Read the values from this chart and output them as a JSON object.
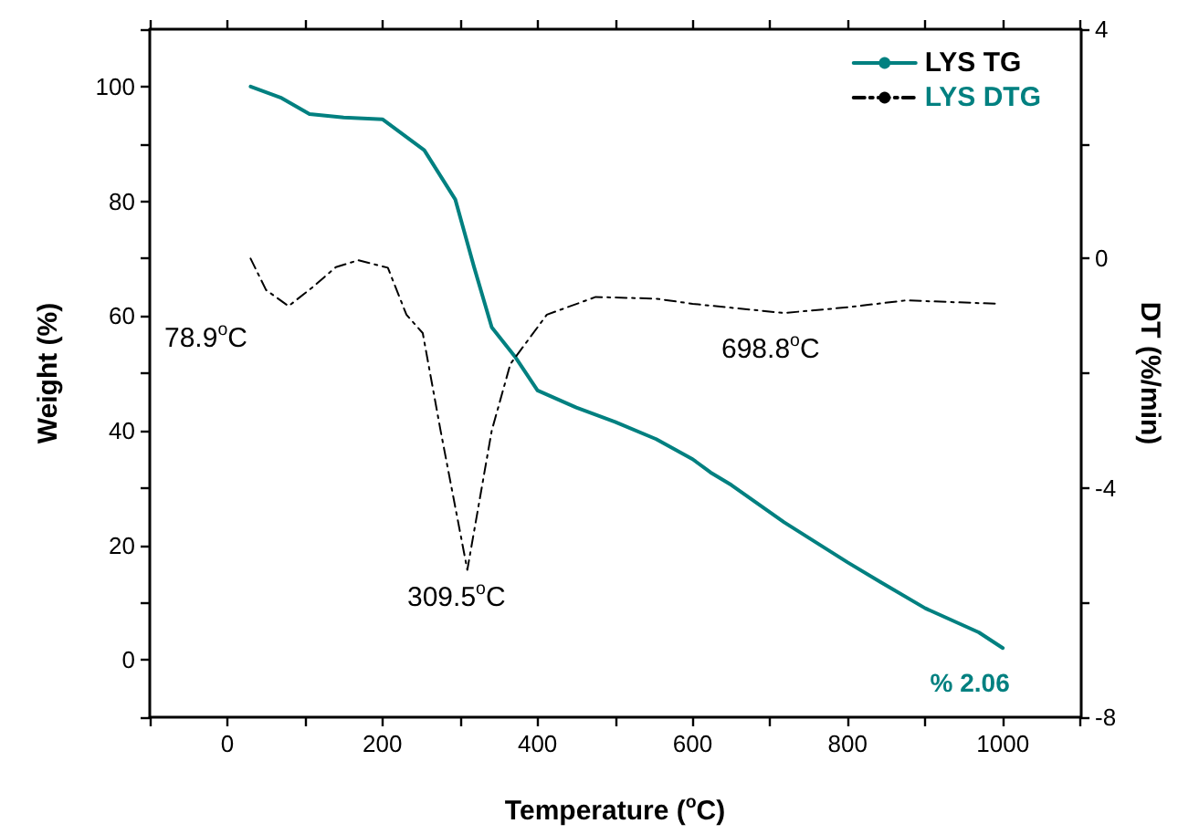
{
  "chart_data": {
    "type": "line",
    "xlabel": "Temperature ($^{o}$C)",
    "ylabel": "Weight (%)",
    "y2label": "DT (%/min)",
    "xlim": [
      -100,
      1100
    ],
    "xticks": [
      {
        "value": -100,
        "label": null
      },
      0,
      {
        "value": 100,
        "label": null
      },
      200,
      {
        "value": 300,
        "label": null
      },
      400,
      {
        "value": 500,
        "label": null
      },
      600,
      {
        "value": 700,
        "label": null
      },
      800,
      {
        "value": 900,
        "label": null
      },
      1000,
      {
        "value": 1100,
        "label": null
      }
    ],
    "ylim": [
      -10,
      110
    ],
    "yticks": [
      {
        "value": -10,
        "label": null
      },
      0,
      {
        "value": 10,
        "label": null
      },
      20,
      {
        "value": 30,
        "label": null
      },
      40,
      {
        "value": 50,
        "label": null
      },
      60,
      {
        "value": 70,
        "label": null
      },
      80,
      {
        "value": 90,
        "label": null
      },
      100,
      {
        "value": 110,
        "label": null
      }
    ],
    "y2lim": [
      -8,
      4
    ],
    "y2ticks": [
      -8,
      {
        "value": -6,
        "label": null
      },
      -4,
      {
        "value": -2,
        "label": null
      },
      0,
      {
        "value": 2,
        "label": null
      },
      4
    ],
    "grid": false,
    "legend": "top right",
    "marker": "none",
    "annotations": [
      "78.9$^{o}$C",
      "309.5$^{o}$C",
      "698.8$^{o}$C"
    ],
    "series": [
      {
        "name": "LYS TG",
        "color": "#008080",
        "line_style": "solid",
        "x": [
          30,
          70,
          106,
          150,
          200,
          254,
          294,
          318,
          341,
          372,
          400,
          450,
          500,
          553,
          600,
          623,
          650,
          718,
          800,
          842,
          900,
          969,
          1000
        ],
        "values": [
          100,
          98,
          95.2,
          94.6,
          94.3,
          88.9,
          80.3,
          68.6,
          58,
          52.7,
          47,
          44,
          41.5,
          38.5,
          35,
          32.7,
          30.5,
          24,
          17,
          13.6,
          9,
          4.8,
          2.06
        ],
        "value_labels": [
          null,
          null,
          null,
          null,
          null,
          null,
          null,
          null,
          null,
          null,
          null,
          null,
          null,
          null,
          null,
          null,
          null,
          null,
          null,
          null,
          null,
          null,
          "% 2.06"
        ]
      },
      {
        "name": "LYS DTG",
        "color": "#000000",
        "line_style": "dashed",
        "axis": "y2",
        "x": [
          30,
          50,
          78.9,
          110,
          140,
          169,
          207,
          231,
          252,
          275,
          309.5,
          341,
          365,
          412,
          475,
          553,
          600,
          718,
          800,
          875,
          995
        ],
        "values": [
          0,
          -0.55,
          -0.83,
          -0.5,
          -0.15,
          -0.03,
          -0.16,
          -0.98,
          -1.3,
          -3.0,
          -5.43,
          -3.0,
          -1.84,
          -0.98,
          -0.67,
          -0.7,
          -0.79,
          -0.95,
          -0.85,
          -0.73,
          -0.79
        ]
      }
    ]
  }
}
